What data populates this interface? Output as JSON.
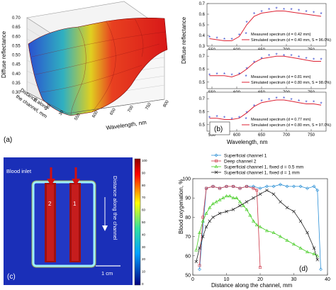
{
  "panel_a": {
    "label": "(a)",
    "zlabel": "Diffuse reflectance",
    "z_ticks": [
      "0.30",
      "0.35",
      "0.40",
      "0.45",
      "0.50",
      "0.55",
      "0.60",
      "0.65",
      "0.70"
    ],
    "xlabel": "Wavelength, nm",
    "x_ticks": [
      "550",
      "600",
      "650",
      "700",
      "750",
      "800"
    ],
    "ylabel_line1": "Distance along",
    "ylabel_line2": "the channel, mm",
    "y_ticks": [
      "10",
      "20",
      "30"
    ]
  },
  "panel_b": {
    "label": "(b)",
    "xlabel": "Wavelength, nm",
    "ylabel": "Diffuse reflectance",
    "x_ticks": [
      "550",
      "600",
      "650",
      "700",
      "750"
    ],
    "colors": {
      "measured": "#3344cc",
      "simulated": "#dd2233"
    },
    "subplots": [
      {
        "y_ticks": [
          "0.3",
          "0.4",
          "0.5",
          "0.6",
          "0.7"
        ],
        "legend_measured": "Measured spectrum (d = 0.42 mm)",
        "legend_simulated": "Simulated spectrum (d = 0.40 mm, S = 96.0%)"
      },
      {
        "y_ticks": [
          "0.5",
          "0.6",
          "0.7"
        ],
        "legend_measured": "Measured spectrum (d = 0.81 mm)",
        "legend_simulated": "Simulated spectrum (d = 0.80 mm, S = 98.0%)"
      },
      {
        "y_ticks": [
          "0.5",
          "0.6",
          "0.7"
        ],
        "legend_measured": "Measured spectrum (d = 0.77 mm)",
        "legend_simulated": "Simulated spectrum (d = 0.80 mm, S = 97.0%)"
      }
    ]
  },
  "panel_c": {
    "label": "(c)",
    "blood_inlet": "Blood inlet",
    "channel_1": "1",
    "channel_2": "2",
    "distance_label": "Distance along the channel",
    "scale_bar": "1 cm",
    "colorbar_ticks": [
      "100",
      "90",
      "80",
      "70",
      "60",
      "50",
      "40",
      "30",
      "20",
      "10",
      "0"
    ]
  },
  "chart_data": [
    {
      "type": "line",
      "title": "",
      "xlabel": "Wavelength, nm",
      "ylabel": "Diffuse reflectance",
      "xlim": [
        540,
        780
      ],
      "subplots": [
        {
          "ylim": [
            0.3,
            0.7
          ],
          "measured": {
            "x": [
              545,
              560,
              575,
              590,
              605,
              620,
              635,
              650,
              665,
              680,
              695,
              710,
              725,
              740,
              755,
              770
            ],
            "y": [
              0.38,
              0.37,
              0.36,
              0.36,
              0.4,
              0.52,
              0.6,
              0.62,
              0.64,
              0.65,
              0.64,
              0.64,
              0.63,
              0.62,
              0.61,
              0.6
            ]
          },
          "simulated": {
            "x": [
              545,
              560,
              575,
              590,
              605,
              620,
              635,
              650,
              665,
              680,
              695,
              710,
              725,
              740,
              755,
              770
            ],
            "y": [
              0.37,
              0.36,
              0.35,
              0.35,
              0.39,
              0.5,
              0.58,
              0.61,
              0.62,
              0.63,
              0.63,
              0.62,
              0.61,
              0.6,
              0.59,
              0.58
            ]
          }
        },
        {
          "ylim": [
            0.45,
            0.75
          ],
          "measured": {
            "x": [
              545,
              560,
              575,
              590,
              605,
              620,
              635,
              650,
              665,
              680,
              695,
              710,
              725,
              740,
              755,
              770
            ],
            "y": [
              0.55,
              0.56,
              0.56,
              0.55,
              0.56,
              0.6,
              0.65,
              0.68,
              0.7,
              0.71,
              0.7,
              0.7,
              0.69,
              0.68,
              0.67,
              0.67
            ]
          },
          "simulated": {
            "x": [
              545,
              560,
              575,
              590,
              605,
              620,
              635,
              650,
              665,
              680,
              695,
              710,
              725,
              740,
              755,
              770
            ],
            "y": [
              0.55,
              0.55,
              0.55,
              0.54,
              0.56,
              0.6,
              0.65,
              0.68,
              0.69,
              0.7,
              0.7,
              0.69,
              0.68,
              0.67,
              0.66,
              0.66
            ]
          }
        },
        {
          "ylim": [
            0.45,
            0.75
          ],
          "measured": {
            "x": [
              545,
              560,
              575,
              590,
              605,
              620,
              635,
              650,
              665,
              680,
              695,
              710,
              725,
              740,
              755,
              770
            ],
            "y": [
              0.55,
              0.56,
              0.55,
              0.54,
              0.55,
              0.59,
              0.64,
              0.68,
              0.69,
              0.7,
              0.7,
              0.69,
              0.68,
              0.67,
              0.67,
              0.66
            ]
          },
          "simulated": {
            "x": [
              545,
              560,
              575,
              590,
              605,
              620,
              635,
              650,
              665,
              680,
              695,
              710,
              725,
              740,
              755,
              770
            ],
            "y": [
              0.55,
              0.55,
              0.54,
              0.54,
              0.55,
              0.59,
              0.64,
              0.67,
              0.68,
              0.69,
              0.69,
              0.68,
              0.67,
              0.66,
              0.66,
              0.65
            ]
          }
        }
      ]
    },
    {
      "type": "line",
      "label": "(d)",
      "title": "",
      "xlabel": "Distance along the channel, mm",
      "ylabel": "Blood oxygenation, %",
      "xlim": [
        0,
        40
      ],
      "ylim": [
        50,
        100
      ],
      "x_ticks": [
        0,
        10,
        20,
        30,
        40
      ],
      "y_ticks": [
        50,
        60,
        70,
        80,
        90,
        100
      ],
      "legend_placement": "top",
      "series": [
        {
          "name": "Superficial channel 1",
          "color": "#2a8fd6",
          "marker": "diamond",
          "x": [
            2,
            4,
            6,
            8,
            10,
            12,
            14,
            16,
            18,
            20,
            22,
            24,
            26,
            28,
            30,
            32,
            34,
            36,
            37,
            38
          ],
          "y": [
            53,
            95,
            96,
            95,
            96,
            96,
            95,
            96,
            96,
            95,
            96,
            96,
            97,
            96,
            96,
            96,
            95,
            96,
            94,
            53
          ]
        },
        {
          "name": "Deep channel 2",
          "color": "#cc3344",
          "marker": "square",
          "x": [
            2,
            3,
            4,
            6,
            8,
            10,
            12,
            14,
            16,
            18,
            19,
            20
          ],
          "y": [
            55,
            80,
            95,
            96,
            95,
            96,
            96,
            95,
            96,
            95,
            94,
            54
          ]
        },
        {
          "name": "Superficial channel 1, fixed d = 0.5 mm",
          "color": "#44cc22",
          "marker": "triangle",
          "x": [
            1,
            2,
            3,
            4,
            5,
            6,
            7,
            8,
            9,
            10,
            11,
            12,
            13,
            14,
            15,
            16,
            17,
            18,
            19,
            20,
            22,
            24,
            26,
            28,
            30,
            32,
            34,
            36,
            37
          ],
          "y": [
            63,
            72,
            78,
            82,
            85,
            87,
            88,
            89,
            90,
            91,
            91,
            90,
            90,
            88,
            86,
            84,
            81,
            78,
            76,
            75,
            73,
            72,
            70,
            68,
            66,
            64,
            62,
            61,
            60
          ]
        },
        {
          "name": "Superficial channel 1, fixed d = 1 mm",
          "color": "#222222",
          "marker": "cross",
          "x": [
            1,
            2,
            3,
            4,
            5,
            6,
            8,
            10,
            12,
            14,
            16,
            18,
            20,
            22,
            24,
            26,
            28,
            30,
            32,
            34,
            36,
            37
          ],
          "y": [
            57,
            64,
            70,
            75,
            78,
            80,
            82,
            83,
            84,
            86,
            88,
            90,
            92,
            94,
            92,
            88,
            85,
            83,
            78,
            72,
            64,
            58
          ]
        }
      ]
    }
  ]
}
